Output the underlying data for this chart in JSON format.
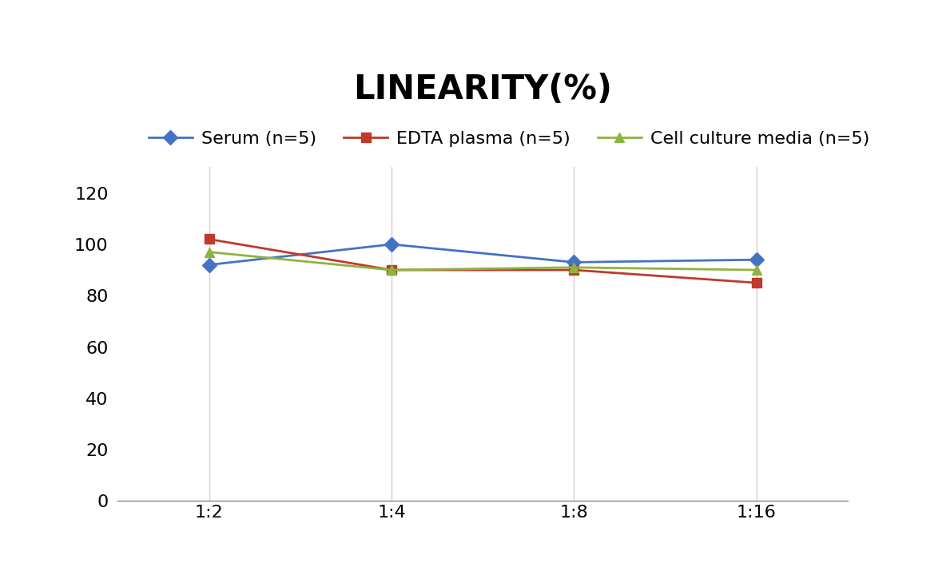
{
  "title": "LINEARITY(%)",
  "x_labels": [
    "1:2",
    "1:4",
    "1:8",
    "1:16"
  ],
  "x_positions": [
    0,
    1,
    2,
    3
  ],
  "series": [
    {
      "label": "Serum (n=5)",
      "values": [
        92,
        100,
        93,
        94
      ],
      "color": "#4472C4",
      "marker": "D",
      "marker_size": 9,
      "linewidth": 2
    },
    {
      "label": "EDTA plasma (n=5)",
      "values": [
        102,
        90,
        90,
        85
      ],
      "color": "#C0392B",
      "marker": "s",
      "marker_size": 9,
      "linewidth": 2
    },
    {
      "label": "Cell culture media (n=5)",
      "values": [
        97,
        90,
        91,
        90
      ],
      "color": "#8DB43E",
      "marker": "^",
      "marker_size": 9,
      "linewidth": 2
    }
  ],
  "ylim": [
    0,
    130
  ],
  "yticks": [
    0,
    20,
    40,
    60,
    80,
    100,
    120
  ],
  "title_fontsize": 30,
  "tick_fontsize": 16,
  "legend_fontsize": 16,
  "background_color": "#ffffff",
  "grid_color": "#d0d0d0"
}
